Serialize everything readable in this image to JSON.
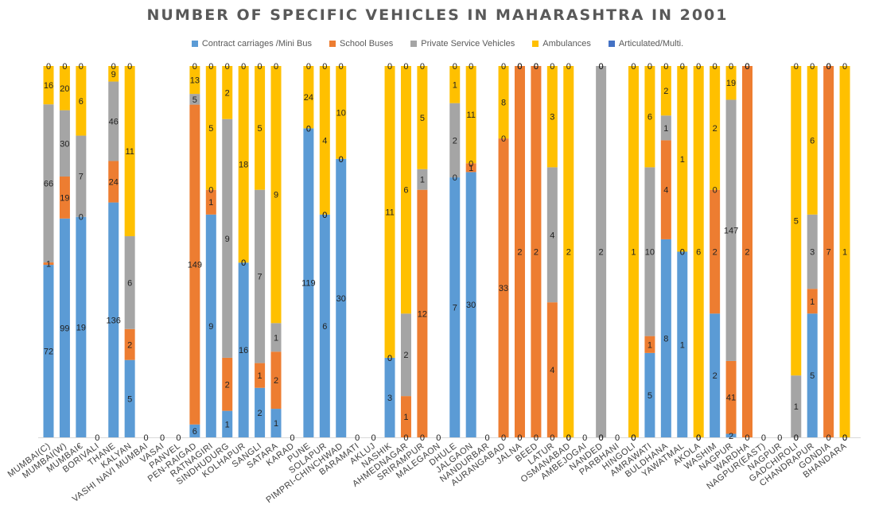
{
  "chart_data": {
    "type": "bar",
    "stacked": true,
    "percent_stacked": true,
    "title": "NUMBER OF SPECIFIC VEHICLES IN MAHARASHTRA IN 2001",
    "xlabel": "",
    "ylabel": "",
    "grid": false,
    "legend_position": "top",
    "categories": [
      "MUMBAI(C)",
      "MUMBAI(W)",
      "MUMBAI€",
      "BORIVALI",
      "THANE",
      "KALYAN",
      "VASHI NAVI MUMBAI",
      "VASAI",
      "PANVEL",
      "PEN-RAIGAD",
      "RATNAGIRI",
      "SINDHUDURG",
      "KOLHAPUR",
      "SANGLI",
      "SATARA",
      "KARAD",
      "PUNE",
      "SOLAPUR",
      "PIMPRI-CHINCHWAD",
      "BARAMATI",
      "AKLUJ",
      "NASHIK",
      "AHMEDNAGAR",
      "SRIRAMPUR",
      "MALEGAON",
      "DHULE",
      "JALGAON",
      "NANDURBAR",
      "AURANGABAD",
      "JALNA",
      "BEED",
      "LATUR",
      "OSMANABAD",
      "AMBEJOGAI",
      "NANDED",
      "PARBHANI",
      "HINGOLI",
      "AMRAWATI",
      "BULDHANA",
      "YAWATMAL",
      "AKOLA",
      "WASHIM",
      "NAGPUR",
      "WARDHA",
      "NAGPUR(EAST)",
      "NAGPUR",
      "GADCHIROLI",
      "CHANDRAPUR",
      "GONDIA",
      "BHANDARA"
    ],
    "series": [
      {
        "name": "Contract carriages /Mini Bus",
        "color": "#5B9BD5",
        "values": [
          72,
          99,
          19,
          0,
          136,
          5,
          0,
          0,
          0,
          6,
          9,
          1,
          16,
          2,
          1,
          0,
          119,
          6,
          30,
          0,
          0,
          3,
          0,
          0,
          0,
          7,
          30,
          0,
          0,
          0,
          0,
          0,
          0,
          0,
          0,
          0,
          0,
          5,
          8,
          1,
          0,
          2,
          2,
          0,
          0,
          0,
          0,
          5,
          0,
          0
        ]
      },
      {
        "name": "School Buses",
        "color": "#ED7D31",
        "values": [
          1,
          19,
          0,
          0,
          24,
          2,
          0,
          0,
          0,
          149,
          1,
          2,
          0,
          1,
          2,
          0,
          0,
          0,
          0,
          0,
          0,
          0,
          1,
          12,
          0,
          0,
          1,
          0,
          33,
          2,
          2,
          4,
          0,
          0,
          0,
          0,
          0,
          1,
          4,
          0,
          0,
          2,
          41,
          2,
          0,
          0,
          0,
          1,
          7,
          0
        ]
      },
      {
        "name": "Private Service Vehicles",
        "color": "#A5A5A5",
        "values": [
          66,
          30,
          7,
          0,
          46,
          6,
          0,
          0,
          0,
          5,
          0,
          9,
          0,
          7,
          1,
          0,
          0,
          0,
          0,
          0,
          0,
          0,
          2,
          1,
          0,
          2,
          0,
          0,
          0,
          0,
          0,
          4,
          0,
          0,
          2,
          0,
          0,
          10,
          1,
          0,
          0,
          0,
          147,
          0,
          0,
          0,
          1,
          3,
          0,
          0
        ]
      },
      {
        "name": "Ambulances",
        "color": "#FFC000",
        "values": [
          16,
          20,
          6,
          0,
          9,
          11,
          0,
          0,
          0,
          13,
          5,
          2,
          18,
          5,
          9,
          0,
          24,
          4,
          10,
          0,
          0,
          11,
          6,
          5,
          0,
          1,
          11,
          0,
          8,
          0,
          0,
          3,
          2,
          0,
          0,
          0,
          1,
          6,
          2,
          1,
          6,
          2,
          19,
          0,
          0,
          0,
          5,
          6,
          0,
          1
        ]
      },
      {
        "name": "Articulated/Multi.",
        "color": "#4472C4",
        "values": [
          0,
          0,
          0,
          0,
          0,
          0,
          0,
          0,
          0,
          0,
          0,
          0,
          0,
          0,
          0,
          0,
          0,
          0,
          0,
          0,
          0,
          0,
          0,
          0,
          0,
          0,
          0,
          0,
          0,
          0,
          0,
          0,
          0,
          0,
          0,
          0,
          0,
          0,
          0,
          0,
          0,
          0,
          0,
          0,
          0,
          0,
          0,
          0,
          0,
          0
        ]
      }
    ]
  }
}
